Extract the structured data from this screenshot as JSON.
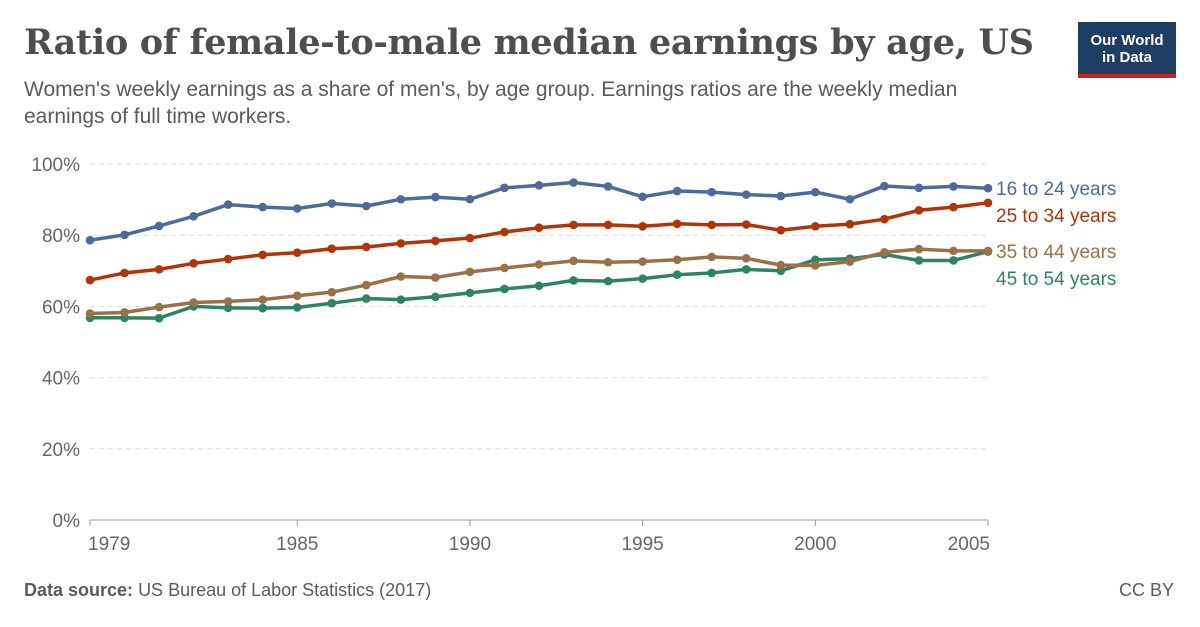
{
  "header": {
    "title": "Ratio of female-to-male median earnings by age, US",
    "subtitle": "Women's weekly earnings as a share of men's, by age group. Earnings ratios are the weekly median earnings of full time workers.",
    "logo_line1": "Our World",
    "logo_line2": "in Data"
  },
  "footer": {
    "source_label": "Data source:",
    "source_text": "US Bureau of Labor Statistics (2017)",
    "license": "CC BY"
  },
  "chart_data": {
    "type": "line",
    "title": "Ratio of female-to-male median earnings by age, US",
    "xlabel": "",
    "ylabel": "",
    "xlim": [
      1979,
      2005
    ],
    "ylim": [
      0,
      100
    ],
    "grid": true,
    "legend": "right-end labels",
    "x_ticks": [
      1979,
      1985,
      1990,
      1995,
      2000,
      2005
    ],
    "y_ticks": [
      "0%",
      "20%",
      "40%",
      "60%",
      "80%",
      "100%"
    ],
    "y_tick_values": [
      0,
      20,
      40,
      60,
      80,
      100
    ],
    "x": [
      1979,
      1980,
      1981,
      1982,
      1983,
      1984,
      1985,
      1986,
      1987,
      1988,
      1989,
      1990,
      1991,
      1992,
      1993,
      1994,
      1995,
      1996,
      1997,
      1998,
      1999,
      2000,
      2001,
      2002,
      2003,
      2004,
      2005
    ],
    "series": [
      {
        "name": "16 to 24 years",
        "color": "#4c6a9c",
        "values": [
          78.6,
          80.1,
          82.6,
          85.3,
          88.6,
          87.9,
          87.5,
          88.9,
          88.2,
          90.1,
          90.7,
          90.1,
          93.3,
          94.0,
          94.8,
          93.7,
          90.8,
          92.4,
          92.1,
          91.4,
          91.0,
          92.1,
          90.1,
          93.8,
          93.3,
          93.7,
          93.2
        ]
      },
      {
        "name": "25 to 34 years",
        "color": "#b13507",
        "values": [
          67.4,
          69.4,
          70.4,
          72.1,
          73.3,
          74.5,
          75.1,
          76.2,
          76.7,
          77.7,
          78.4,
          79.2,
          80.9,
          82.1,
          82.9,
          82.9,
          82.5,
          83.2,
          82.9,
          83.0,
          81.4,
          82.5,
          83.1,
          84.5,
          87.0,
          87.9,
          89.1
        ]
      },
      {
        "name": "35 to 44 years",
        "color": "#9a7146",
        "values": [
          58.0,
          58.3,
          59.8,
          61.1,
          61.4,
          61.9,
          63.0,
          64.0,
          66.0,
          68.4,
          68.1,
          69.7,
          70.8,
          71.8,
          72.8,
          72.4,
          72.6,
          73.1,
          73.9,
          73.5,
          71.6,
          71.5,
          72.6,
          75.2,
          76.1,
          75.6,
          75.6
        ]
      },
      {
        "name": "45 to 54 years",
        "color": "#2c8465",
        "values": [
          56.8,
          56.8,
          56.7,
          60.0,
          59.6,
          59.5,
          59.7,
          60.9,
          62.2,
          61.9,
          62.7,
          63.8,
          64.9,
          65.8,
          67.3,
          67.1,
          67.8,
          68.9,
          69.4,
          70.4,
          70.0,
          73.1,
          73.4,
          74.6,
          72.9,
          72.9,
          75.4
        ]
      }
    ]
  }
}
